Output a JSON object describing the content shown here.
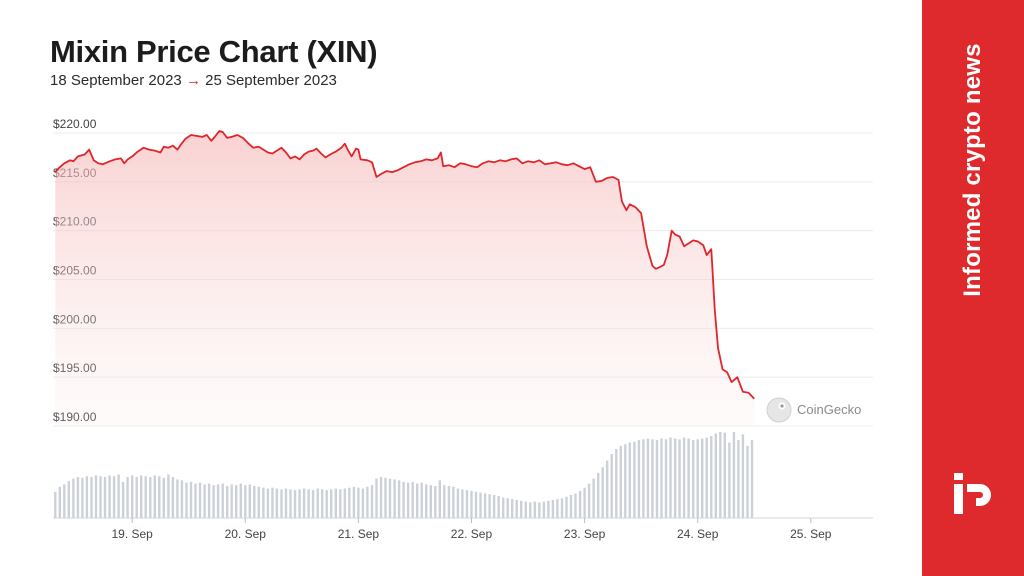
{
  "header": {
    "title": "Mixin Price Chart (XIN)",
    "date_from": "18 September 2023",
    "arrow": "→",
    "date_to": "25 September 2023"
  },
  "sidebar": {
    "tagline": "Informed crypto news",
    "logo": "potato-p-logo-icon",
    "color": "#de2a2c"
  },
  "watermark": "CoinGecko",
  "chart_data": {
    "type": "line",
    "title": "Mixin Price Chart (XIN)",
    "y_ticks": [
      "$220.00",
      "$215.00",
      "$210.00",
      "$205.00",
      "$200.00",
      "$195.00",
      "$190.00"
    ],
    "ylim": [
      190,
      220
    ],
    "x_ticks": [
      "19. Sep",
      "20. Sep",
      "21. Sep",
      "22. Sep",
      "23. Sep",
      "24. Sep",
      "25. Sep"
    ],
    "x_tick_days": [
      1,
      2,
      3,
      4,
      5,
      6,
      7
    ],
    "x_range_days": [
      0.3,
      7.55
    ],
    "line_color": "#e0252b",
    "grid": true,
    "price_series": [
      [
        0.32,
        216.0
      ],
      [
        0.35,
        216.4
      ],
      [
        0.4,
        216.9
      ],
      [
        0.45,
        217.2
      ],
      [
        0.48,
        217.1
      ],
      [
        0.52,
        217.6
      ],
      [
        0.58,
        217.8
      ],
      [
        0.62,
        218.3
      ],
      [
        0.66,
        217.2
      ],
      [
        0.7,
        216.9
      ],
      [
        0.74,
        216.8
      ],
      [
        0.8,
        217.1
      ],
      [
        0.85,
        217.3
      ],
      [
        0.9,
        217.4
      ],
      [
        0.93,
        216.9
      ],
      [
        0.96,
        217.3
      ],
      [
        1.0,
        217.6
      ],
      [
        1.05,
        218.1
      ],
      [
        1.1,
        218.5
      ],
      [
        1.15,
        218.3
      ],
      [
        1.2,
        218.2
      ],
      [
        1.25,
        218.0
      ],
      [
        1.28,
        218.6
      ],
      [
        1.32,
        218.5
      ],
      [
        1.36,
        218.7
      ],
      [
        1.4,
        218.3
      ],
      [
        1.43,
        218.8
      ],
      [
        1.47,
        219.4
      ],
      [
        1.52,
        219.8
      ],
      [
        1.57,
        219.7
      ],
      [
        1.62,
        219.6
      ],
      [
        1.66,
        219.8
      ],
      [
        1.7,
        219.2
      ],
      [
        1.73,
        219.6
      ],
      [
        1.77,
        220.2
      ],
      [
        1.8,
        220.1
      ],
      [
        1.84,
        219.5
      ],
      [
        1.88,
        219.6
      ],
      [
        1.93,
        219.8
      ],
      [
        1.98,
        219.5
      ],
      [
        2.03,
        218.9
      ],
      [
        2.07,
        218.5
      ],
      [
        2.12,
        218.6
      ],
      [
        2.16,
        218.3
      ],
      [
        2.2,
        218.0
      ],
      [
        2.24,
        217.9
      ],
      [
        2.28,
        218.2
      ],
      [
        2.32,
        218.5
      ],
      [
        2.36,
        218.0
      ],
      [
        2.4,
        217.4
      ],
      [
        2.44,
        217.6
      ],
      [
        2.48,
        217.3
      ],
      [
        2.52,
        217.8
      ],
      [
        2.56,
        218.1
      ],
      [
        2.6,
        218.2
      ],
      [
        2.63,
        218.4
      ],
      [
        2.67,
        217.9
      ],
      [
        2.71,
        217.5
      ],
      [
        2.75,
        217.8
      ],
      [
        2.8,
        218.1
      ],
      [
        2.85,
        218.5
      ],
      [
        2.88,
        218.9
      ],
      [
        2.91,
        218.2
      ],
      [
        2.94,
        217.6
      ],
      [
        2.98,
        218.4
      ],
      [
        3.0,
        218.3
      ],
      [
        3.02,
        217.3
      ],
      [
        3.08,
        217.2
      ],
      [
        3.12,
        217.0
      ],
      [
        3.16,
        215.5
      ],
      [
        3.2,
        215.8
      ],
      [
        3.25,
        216.1
      ],
      [
        3.3,
        216.0
      ],
      [
        3.35,
        216.2
      ],
      [
        3.4,
        216.5
      ],
      [
        3.45,
        216.8
      ],
      [
        3.5,
        217.0
      ],
      [
        3.55,
        217.1
      ],
      [
        3.6,
        217.3
      ],
      [
        3.65,
        217.2
      ],
      [
        3.7,
        217.4
      ],
      [
        3.73,
        218.0
      ],
      [
        3.75,
        216.6
      ],
      [
        3.8,
        216.7
      ],
      [
        3.85,
        216.5
      ],
      [
        3.9,
        216.9
      ],
      [
        3.95,
        216.8
      ],
      [
        4.0,
        216.6
      ],
      [
        4.05,
        216.5
      ],
      [
        4.1,
        216.9
      ],
      [
        4.15,
        217.1
      ],
      [
        4.2,
        217.0
      ],
      [
        4.25,
        217.2
      ],
      [
        4.3,
        217.1
      ],
      [
        4.35,
        217.3
      ],
      [
        4.4,
        217.4
      ],
      [
        4.45,
        216.9
      ],
      [
        4.5,
        217.1
      ],
      [
        4.55,
        217.0
      ],
      [
        4.6,
        217.2
      ],
      [
        4.65,
        216.8
      ],
      [
        4.7,
        216.9
      ],
      [
        4.75,
        217.0
      ],
      [
        4.8,
        216.8
      ],
      [
        4.85,
        216.7
      ],
      [
        4.9,
        216.9
      ],
      [
        4.95,
        216.6
      ],
      [
        5.0,
        216.3
      ],
      [
        5.05,
        216.5
      ],
      [
        5.1,
        215.0
      ],
      [
        5.15,
        215.1
      ],
      [
        5.2,
        215.4
      ],
      [
        5.25,
        215.5
      ],
      [
        5.3,
        215.2
      ],
      [
        5.33,
        213.0
      ],
      [
        5.37,
        212.1
      ],
      [
        5.4,
        212.7
      ],
      [
        5.45,
        212.4
      ],
      [
        5.5,
        211.8
      ],
      [
        5.55,
        208.4
      ],
      [
        5.6,
        206.4
      ],
      [
        5.63,
        206.1
      ],
      [
        5.67,
        206.3
      ],
      [
        5.7,
        206.5
      ],
      [
        5.73,
        207.5
      ],
      [
        5.77,
        210.0
      ],
      [
        5.8,
        209.6
      ],
      [
        5.84,
        209.4
      ],
      [
        5.88,
        208.4
      ],
      [
        5.92,
        208.7
      ],
      [
        5.96,
        209.0
      ],
      [
        6.0,
        208.9
      ],
      [
        6.05,
        208.5
      ],
      [
        6.08,
        207.5
      ],
      [
        6.12,
        208.1
      ],
      [
        6.15,
        202.0
      ],
      [
        6.18,
        198.0
      ],
      [
        6.22,
        195.8
      ],
      [
        6.26,
        195.5
      ],
      [
        6.3,
        194.5
      ],
      [
        6.35,
        195.0
      ],
      [
        6.4,
        193.5
      ],
      [
        6.45,
        193.4
      ],
      [
        6.5,
        192.8
      ]
    ],
    "volume_series_note": "relative volume bars at bottom panel (unlabeled)",
    "volume_series": [
      [
        0.32,
        0.32
      ],
      [
        0.36,
        0.38
      ],
      [
        0.4,
        0.41
      ],
      [
        0.44,
        0.45
      ],
      [
        0.48,
        0.48
      ],
      [
        0.52,
        0.5
      ],
      [
        0.56,
        0.49
      ],
      [
        0.6,
        0.51
      ],
      [
        0.64,
        0.5
      ],
      [
        0.68,
        0.52
      ],
      [
        0.72,
        0.51
      ],
      [
        0.76,
        0.5
      ],
      [
        0.8,
        0.52
      ],
      [
        0.84,
        0.51
      ],
      [
        0.88,
        0.53
      ],
      [
        0.92,
        0.44
      ],
      [
        0.96,
        0.5
      ],
      [
        1.0,
        0.52
      ],
      [
        1.04,
        0.5
      ],
      [
        1.08,
        0.52
      ],
      [
        1.12,
        0.51
      ],
      [
        1.16,
        0.5
      ],
      [
        1.2,
        0.52
      ],
      [
        1.24,
        0.51
      ],
      [
        1.28,
        0.49
      ],
      [
        1.32,
        0.53
      ],
      [
        1.36,
        0.5
      ],
      [
        1.4,
        0.47
      ],
      [
        1.44,
        0.46
      ],
      [
        1.48,
        0.43
      ],
      [
        1.52,
        0.44
      ],
      [
        1.56,
        0.42
      ],
      [
        1.6,
        0.43
      ],
      [
        1.64,
        0.41
      ],
      [
        1.68,
        0.42
      ],
      [
        1.72,
        0.4
      ],
      [
        1.76,
        0.41
      ],
      [
        1.8,
        0.42
      ],
      [
        1.84,
        0.39
      ],
      [
        1.88,
        0.41
      ],
      [
        1.92,
        0.4
      ],
      [
        1.96,
        0.42
      ],
      [
        2.0,
        0.4
      ],
      [
        2.04,
        0.41
      ],
      [
        2.08,
        0.39
      ],
      [
        2.12,
        0.38
      ],
      [
        2.16,
        0.37
      ],
      [
        2.2,
        0.36
      ],
      [
        2.24,
        0.37
      ],
      [
        2.28,
        0.36
      ],
      [
        2.32,
        0.35
      ],
      [
        2.36,
        0.36
      ],
      [
        2.4,
        0.35
      ],
      [
        2.44,
        0.34
      ],
      [
        2.48,
        0.35
      ],
      [
        2.52,
        0.36
      ],
      [
        2.56,
        0.35
      ],
      [
        2.6,
        0.34
      ],
      [
        2.64,
        0.36
      ],
      [
        2.68,
        0.35
      ],
      [
        2.72,
        0.34
      ],
      [
        2.76,
        0.35
      ],
      [
        2.8,
        0.36
      ],
      [
        2.84,
        0.35
      ],
      [
        2.88,
        0.36
      ],
      [
        2.92,
        0.37
      ],
      [
        2.96,
        0.38
      ],
      [
        3.0,
        0.37
      ],
      [
        3.04,
        0.36
      ],
      [
        3.08,
        0.38
      ],
      [
        3.12,
        0.4
      ],
      [
        3.16,
        0.48
      ],
      [
        3.2,
        0.5
      ],
      [
        3.24,
        0.49
      ],
      [
        3.28,
        0.48
      ],
      [
        3.32,
        0.47
      ],
      [
        3.36,
        0.46
      ],
      [
        3.4,
        0.44
      ],
      [
        3.44,
        0.43
      ],
      [
        3.48,
        0.44
      ],
      [
        3.52,
        0.42
      ],
      [
        3.56,
        0.43
      ],
      [
        3.6,
        0.41
      ],
      [
        3.64,
        0.4
      ],
      [
        3.68,
        0.39
      ],
      [
        3.72,
        0.46
      ],
      [
        3.76,
        0.4
      ],
      [
        3.8,
        0.39
      ],
      [
        3.84,
        0.38
      ],
      [
        3.88,
        0.36
      ],
      [
        3.92,
        0.35
      ],
      [
        3.96,
        0.34
      ],
      [
        4.0,
        0.33
      ],
      [
        4.04,
        0.32
      ],
      [
        4.08,
        0.31
      ],
      [
        4.12,
        0.3
      ],
      [
        4.16,
        0.29
      ],
      [
        4.2,
        0.28
      ],
      [
        4.24,
        0.27
      ],
      [
        4.28,
        0.25
      ],
      [
        4.32,
        0.24
      ],
      [
        4.36,
        0.23
      ],
      [
        4.4,
        0.22
      ],
      [
        4.44,
        0.21
      ],
      [
        4.48,
        0.2
      ],
      [
        4.52,
        0.19
      ],
      [
        4.56,
        0.2
      ],
      [
        4.6,
        0.19
      ],
      [
        4.64,
        0.2
      ],
      [
        4.68,
        0.21
      ],
      [
        4.72,
        0.22
      ],
      [
        4.76,
        0.23
      ],
      [
        4.8,
        0.24
      ],
      [
        4.84,
        0.26
      ],
      [
        4.88,
        0.28
      ],
      [
        4.92,
        0.3
      ],
      [
        4.96,
        0.33
      ],
      [
        5.0,
        0.37
      ],
      [
        5.04,
        0.42
      ],
      [
        5.08,
        0.48
      ],
      [
        5.12,
        0.55
      ],
      [
        5.16,
        0.62
      ],
      [
        5.2,
        0.7
      ],
      [
        5.24,
        0.78
      ],
      [
        5.28,
        0.84
      ],
      [
        5.32,
        0.88
      ],
      [
        5.36,
        0.9
      ],
      [
        5.4,
        0.92
      ],
      [
        5.44,
        0.93
      ],
      [
        5.48,
        0.95
      ],
      [
        5.52,
        0.96
      ],
      [
        5.56,
        0.97
      ],
      [
        5.6,
        0.96
      ],
      [
        5.64,
        0.95
      ],
      [
        5.68,
        0.97
      ],
      [
        5.72,
        0.96
      ],
      [
        5.76,
        0.98
      ],
      [
        5.8,
        0.97
      ],
      [
        5.84,
        0.96
      ],
      [
        5.88,
        0.98
      ],
      [
        5.92,
        0.97
      ],
      [
        5.96,
        0.95
      ],
      [
        6.0,
        0.96
      ],
      [
        6.04,
        0.97
      ],
      [
        6.08,
        0.98
      ],
      [
        6.12,
        1.0
      ],
      [
        6.16,
        1.03
      ],
      [
        6.2,
        1.05
      ],
      [
        6.24,
        1.04
      ],
      [
        6.28,
        0.92
      ],
      [
        6.32,
        1.05
      ],
      [
        6.36,
        0.95
      ],
      [
        6.4,
        1.02
      ],
      [
        6.44,
        0.88
      ],
      [
        6.48,
        0.95
      ]
    ]
  }
}
